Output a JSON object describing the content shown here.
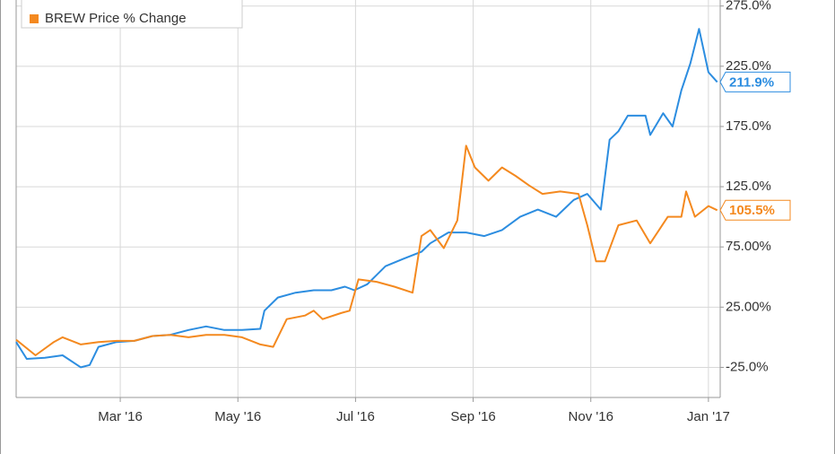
{
  "chart_data": {
    "type": "line",
    "xlim": [
      0.23,
      12.2
    ],
    "ylim": [
      -50,
      280
    ],
    "xticks": [
      {
        "value": 2,
        "label": "Mar '16"
      },
      {
        "value": 4,
        "label": "May '16"
      },
      {
        "value": 6,
        "label": "Jul '16"
      },
      {
        "value": 8,
        "label": "Sep '16"
      },
      {
        "value": 10,
        "label": "Nov '16"
      },
      {
        "value": 12,
        "label": "Jan '17"
      }
    ],
    "yticks": [
      {
        "value": -25,
        "label": "-25.0%"
      },
      {
        "value": 25,
        "label": "25.00%"
      },
      {
        "value": 75,
        "label": "75.00%"
      },
      {
        "value": 125,
        "label": "125.0%"
      },
      {
        "value": 175,
        "label": "175.0%"
      },
      {
        "value": 225,
        "label": "225.0%"
      },
      {
        "value": 275,
        "label": "275.0%"
      }
    ],
    "grid": true,
    "series": [
      {
        "color": "#2c8de0",
        "x": [
          0.23,
          0.41,
          0.72,
          1.02,
          1.33,
          1.48,
          1.63,
          1.94,
          2.24,
          2.55,
          2.85,
          3.16,
          3.46,
          3.77,
          4.07,
          4.38,
          4.45,
          4.68,
          4.98,
          5.29,
          5.59,
          5.82,
          5.98,
          6.2,
          6.51,
          6.81,
          7.12,
          7.27,
          7.58,
          7.88,
          8.19,
          8.49,
          8.8,
          9.1,
          9.41,
          9.71,
          9.94,
          10.17,
          10.32,
          10.47,
          10.63,
          10.93,
          11.01,
          11.23,
          11.39,
          11.54,
          11.69,
          11.84,
          12.0,
          12.15
        ],
        "values": [
          -4,
          -18,
          -17,
          -15,
          -25,
          -23,
          -8,
          -4,
          -3,
          1,
          2,
          6,
          9,
          6,
          6,
          7,
          22,
          33,
          37,
          39,
          39,
          42,
          39,
          44,
          59,
          65,
          71,
          78,
          87,
          87,
          84,
          89,
          100,
          106,
          100,
          114,
          119,
          106,
          164,
          171,
          184,
          184,
          168,
          186,
          175,
          205,
          227,
          256,
          220,
          211.9
        ],
        "value_labels": [
          null,
          null,
          null,
          null,
          null,
          null,
          null,
          null,
          null,
          null,
          null,
          null,
          null,
          null,
          null,
          null,
          null,
          null,
          null,
          null,
          null,
          null,
          null,
          null,
          null,
          null,
          null,
          null,
          null,
          null,
          null,
          null,
          null,
          null,
          null,
          null,
          null,
          null,
          null,
          null,
          null,
          null,
          null,
          null,
          null,
          null,
          null,
          null,
          null,
          "211.9%"
        ]
      },
      {
        "name": "BREW Price % Change",
        "color": "#f4891f",
        "x": [
          0.23,
          0.56,
          0.87,
          1.02,
          1.33,
          1.63,
          1.94,
          2.24,
          2.55,
          2.85,
          3.16,
          3.46,
          3.77,
          4.07,
          4.38,
          4.6,
          4.83,
          5.14,
          5.29,
          5.44,
          5.75,
          5.9,
          6.05,
          6.36,
          6.66,
          6.97,
          7.12,
          7.27,
          7.5,
          7.73,
          7.88,
          8.03,
          8.26,
          8.49,
          8.72,
          8.95,
          9.18,
          9.48,
          9.79,
          9.94,
          10.09,
          10.24,
          10.47,
          10.78,
          11.01,
          11.31,
          11.54,
          11.62,
          11.77,
          12.0,
          12.15
        ],
        "values": [
          -2,
          -15,
          -4,
          0,
          -6,
          -4,
          -3,
          -3,
          1,
          2,
          0,
          2,
          2,
          0,
          -6,
          -8,
          15,
          18,
          22,
          15,
          20,
          22,
          48,
          46,
          42,
          37,
          84,
          89,
          74,
          97,
          159,
          141,
          130,
          141,
          134,
          126,
          119,
          121,
          119,
          93,
          63,
          63,
          93,
          97,
          78,
          100,
          100,
          121,
          100,
          109,
          105.5
        ],
        "value_labels": [
          null,
          null,
          null,
          null,
          null,
          null,
          null,
          null,
          null,
          null,
          null,
          null,
          null,
          null,
          null,
          null,
          null,
          null,
          null,
          null,
          null,
          null,
          null,
          null,
          null,
          null,
          null,
          null,
          null,
          null,
          null,
          null,
          null,
          null,
          null,
          null,
          null,
          null,
          null,
          null,
          null,
          null,
          null,
          null,
          null,
          null,
          null,
          null,
          null,
          null,
          "105.5%"
        ]
      }
    ]
  }
}
